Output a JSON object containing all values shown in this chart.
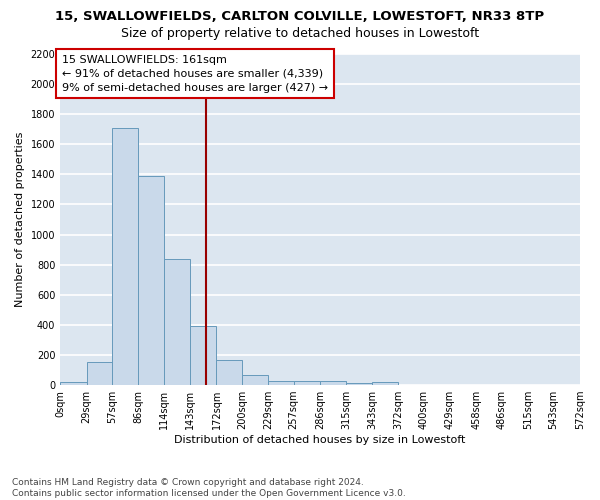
{
  "title": "15, SWALLOWFIELDS, CARLTON COLVILLE, LOWESTOFT, NR33 8TP",
  "subtitle": "Size of property relative to detached houses in Lowestoft",
  "xlabel": "Distribution of detached houses by size in Lowestoft",
  "ylabel": "Number of detached properties",
  "bar_color": "#c9d9ea",
  "bar_edge_color": "#6699bb",
  "background_color": "#dce6f0",
  "grid_color": "#ffffff",
  "fig_facecolor": "#ffffff",
  "bin_edges": [
    0,
    29,
    57,
    86,
    114,
    143,
    172,
    200,
    229,
    257,
    286,
    315,
    343,
    372,
    400,
    429,
    458,
    486,
    515,
    543,
    572
  ],
  "bin_labels": [
    "0sqm",
    "29sqm",
    "57sqm",
    "86sqm",
    "114sqm",
    "143sqm",
    "172sqm",
    "200sqm",
    "229sqm",
    "257sqm",
    "286sqm",
    "315sqm",
    "343sqm",
    "372sqm",
    "400sqm",
    "429sqm",
    "458sqm",
    "486sqm",
    "515sqm",
    "543sqm",
    "572sqm"
  ],
  "bar_heights": [
    20,
    155,
    1710,
    1390,
    835,
    390,
    165,
    70,
    30,
    27,
    25,
    15,
    20,
    0,
    0,
    0,
    0,
    0,
    0,
    0
  ],
  "property_value": 161,
  "vline_color": "#990000",
  "annotation_text": "15 SWALLOWFIELDS: 161sqm\n← 91% of detached houses are smaller (4,339)\n9% of semi-detached houses are larger (427) →",
  "annotation_box_color": "#ffffff",
  "annotation_box_edge_color": "#cc0000",
  "ylim": [
    0,
    2200
  ],
  "yticks": [
    0,
    200,
    400,
    600,
    800,
    1000,
    1200,
    1400,
    1600,
    1800,
    2000,
    2200
  ],
  "footnote": "Contains HM Land Registry data © Crown copyright and database right 2024.\nContains public sector information licensed under the Open Government Licence v3.0.",
  "title_fontsize": 9.5,
  "subtitle_fontsize": 9,
  "label_fontsize": 8,
  "tick_fontsize": 7,
  "annotation_fontsize": 8,
  "footnote_fontsize": 6.5
}
